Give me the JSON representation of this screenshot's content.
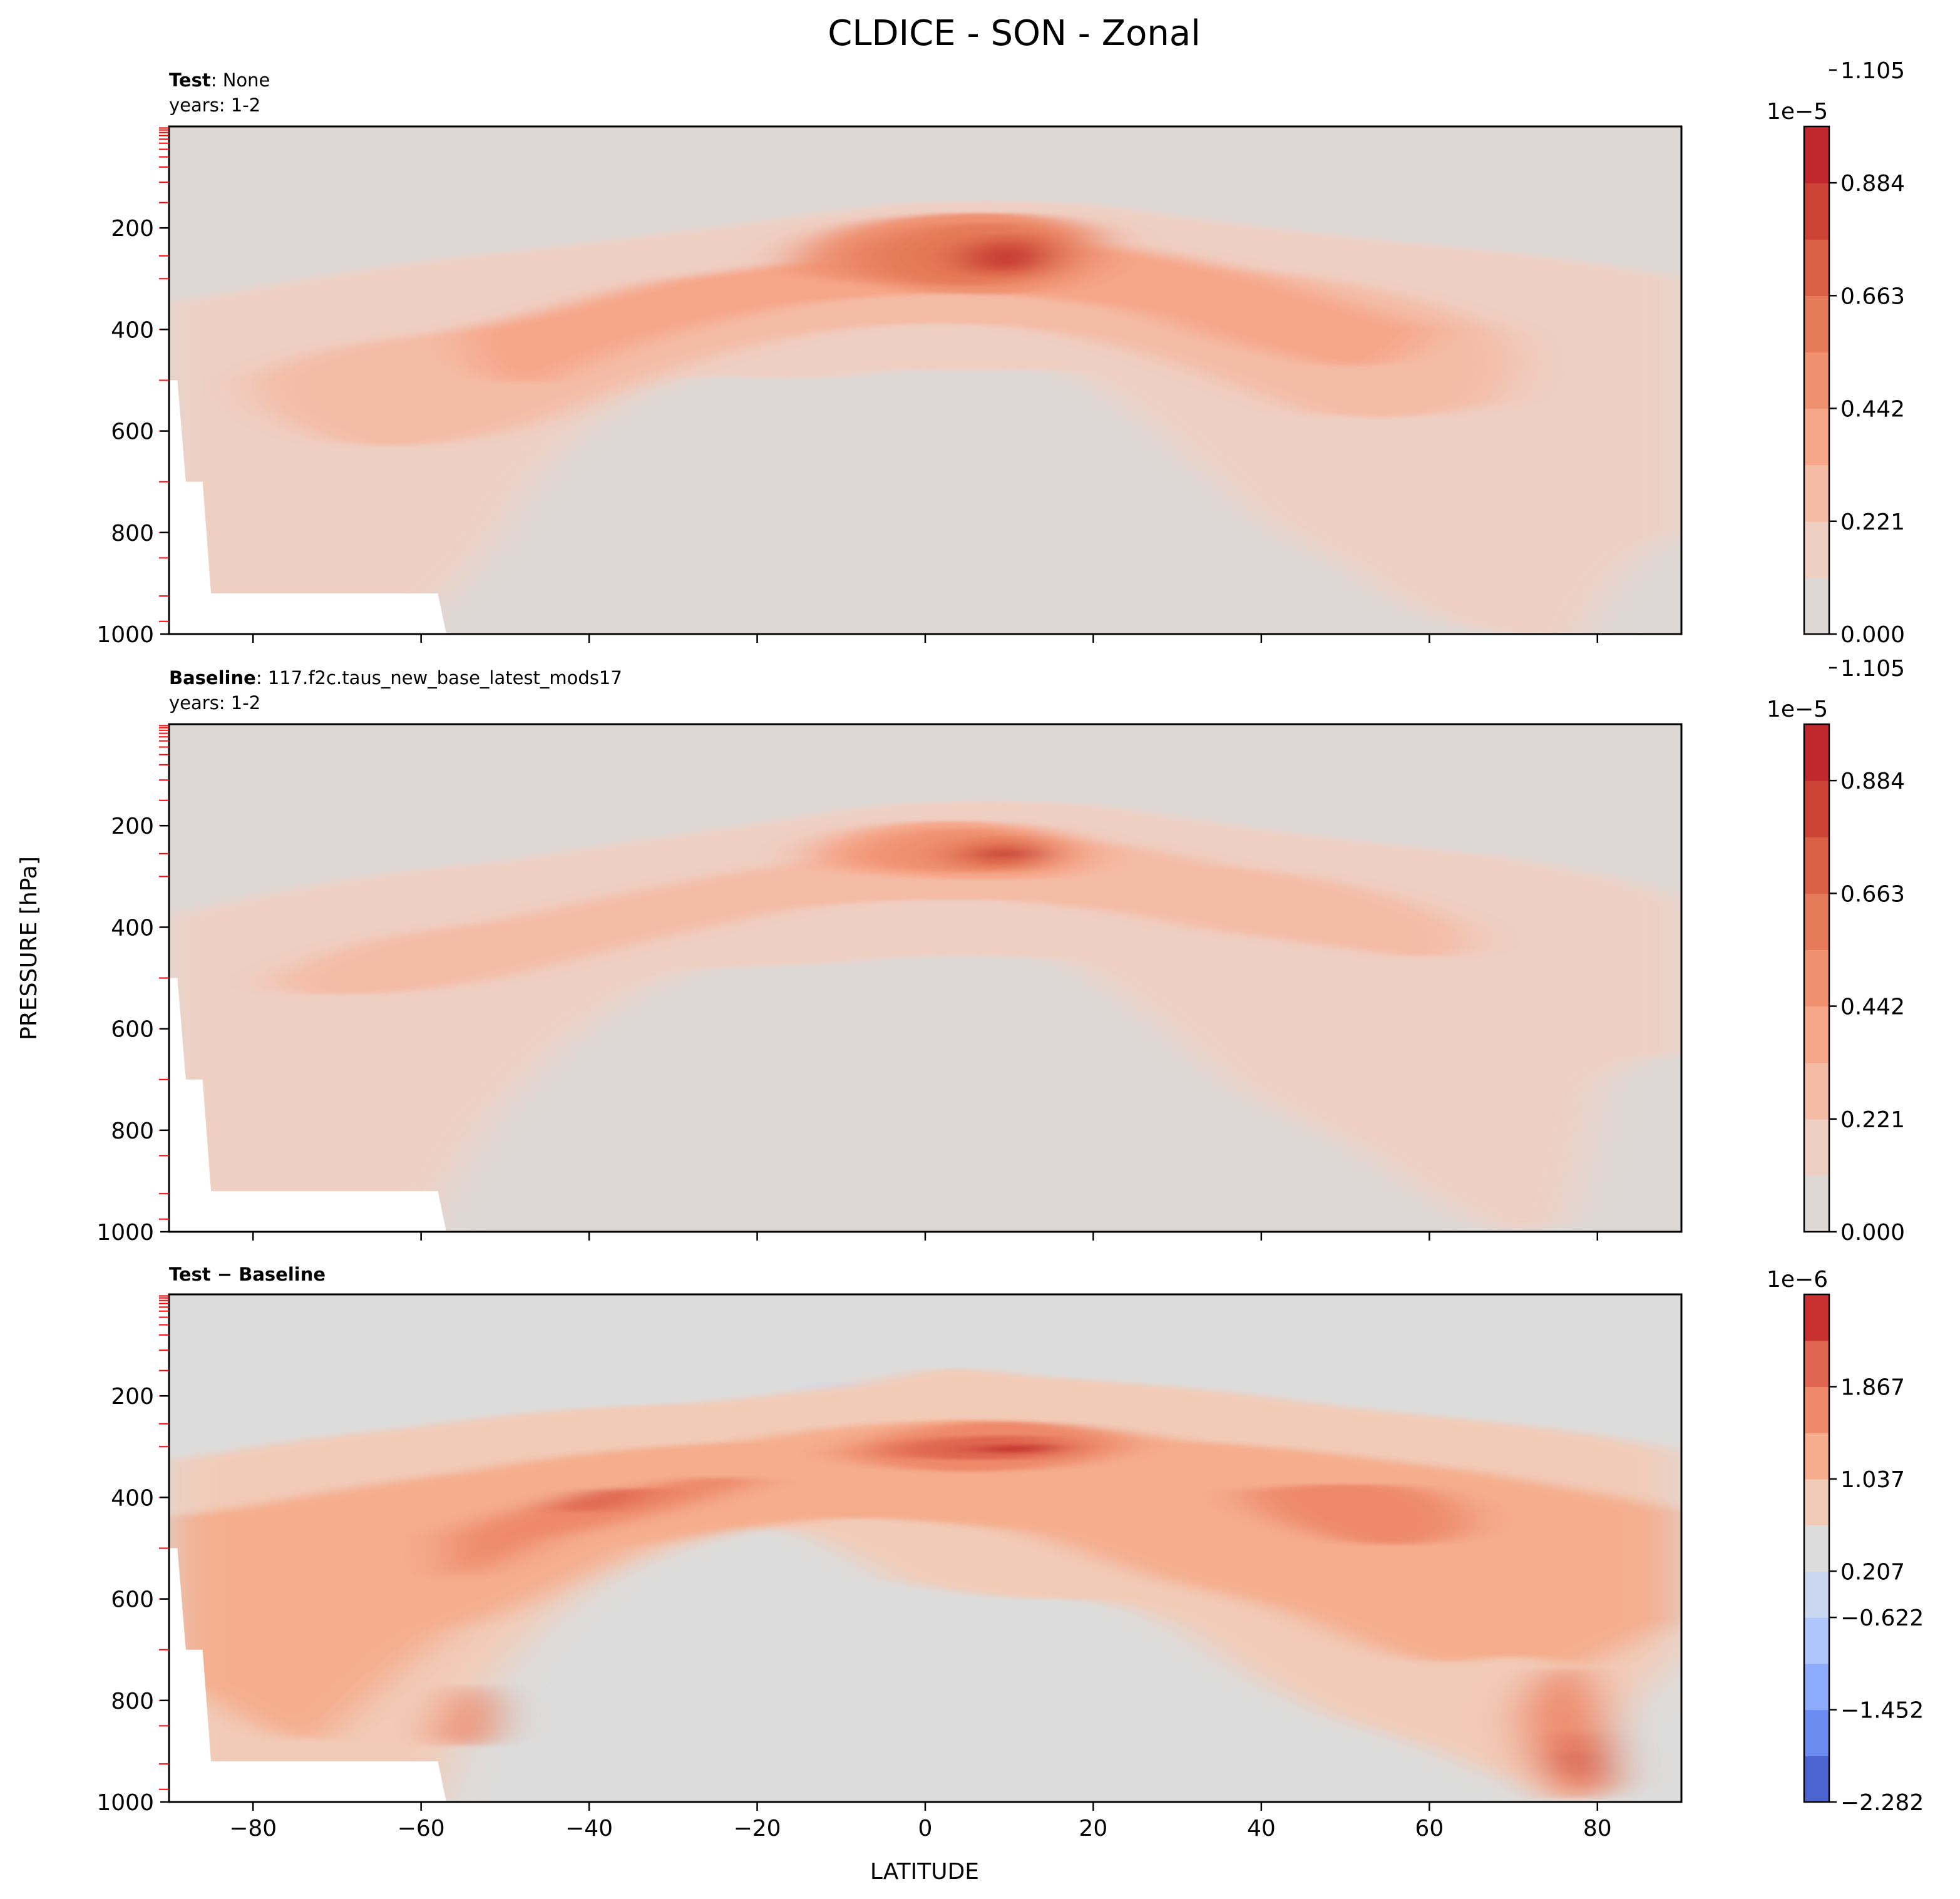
{
  "figure": {
    "title": "CLDICE - SON - Zonal",
    "ylabel": "PRESSURE [hPa]",
    "xlabel": "LATITUDE"
  },
  "chart_data": [
    {
      "type": "heatmap",
      "panel": "test",
      "label_bold": "Test",
      "label_value": "None",
      "years": "years: 1-2",
      "xlim": [
        -90,
        90
      ],
      "ylim": [
        1000,
        0
      ],
      "yticks": [
        "200",
        "400",
        "600",
        "800",
        "1000"
      ],
      "colorbar": {
        "exponent": "1e−5",
        "ticks": [
          "0.000",
          "0.221",
          "0.442",
          "0.663",
          "0.884",
          "1.105"
        ],
        "colors": [
          "#ddd8d5",
          "#efcfc2",
          "#f4bba5",
          "#f6a689",
          "#ef916f",
          "#e57a58",
          "#d95f45",
          "#cd4336",
          "#c0282d"
        ]
      }
    },
    {
      "type": "heatmap",
      "panel": "baseline",
      "label_bold": "Baseline",
      "label_value": "117.f2c.taus_new_base_latest_mods17",
      "years": "years: 1-2",
      "xlim": [
        -90,
        90
      ],
      "ylim": [
        1000,
        0
      ],
      "yticks": [
        "200",
        "400",
        "600",
        "800",
        "1000"
      ],
      "colorbar": {
        "exponent": "1e−5",
        "ticks": [
          "0.000",
          "0.221",
          "0.442",
          "0.663",
          "0.884",
          "1.105"
        ],
        "colors": [
          "#ddd8d5",
          "#efcfc2",
          "#f4bba5",
          "#f6a689",
          "#ef916f",
          "#e57a58",
          "#d95f45",
          "#cd4336",
          "#c0282d"
        ]
      }
    },
    {
      "type": "heatmap",
      "panel": "difference",
      "label_bold": "Test − Baseline",
      "xlim": [
        -90,
        90
      ],
      "ylim": [
        1000,
        0
      ],
      "yticks": [
        "200",
        "400",
        "600",
        "800",
        "1000"
      ],
      "xticks": [
        "−80",
        "−60",
        "−40",
        "−20",
        "0",
        "20",
        "40",
        "60",
        "80"
      ],
      "colorbar": {
        "exponent": "1e−6",
        "ticks": [
          "−2.282",
          "−1.452",
          "−0.622",
          "0.207",
          "1.037",
          "1.867"
        ],
        "colors": [
          "#4b64d0",
          "#6a8cf0",
          "#8cabfa",
          "#aec6fb",
          "#c9d7f0",
          "#dcdcdc",
          "#f2cbb7",
          "#f5ad8d",
          "#ee8a6a",
          "#df6650",
          "#c8312f"
        ]
      }
    }
  ]
}
